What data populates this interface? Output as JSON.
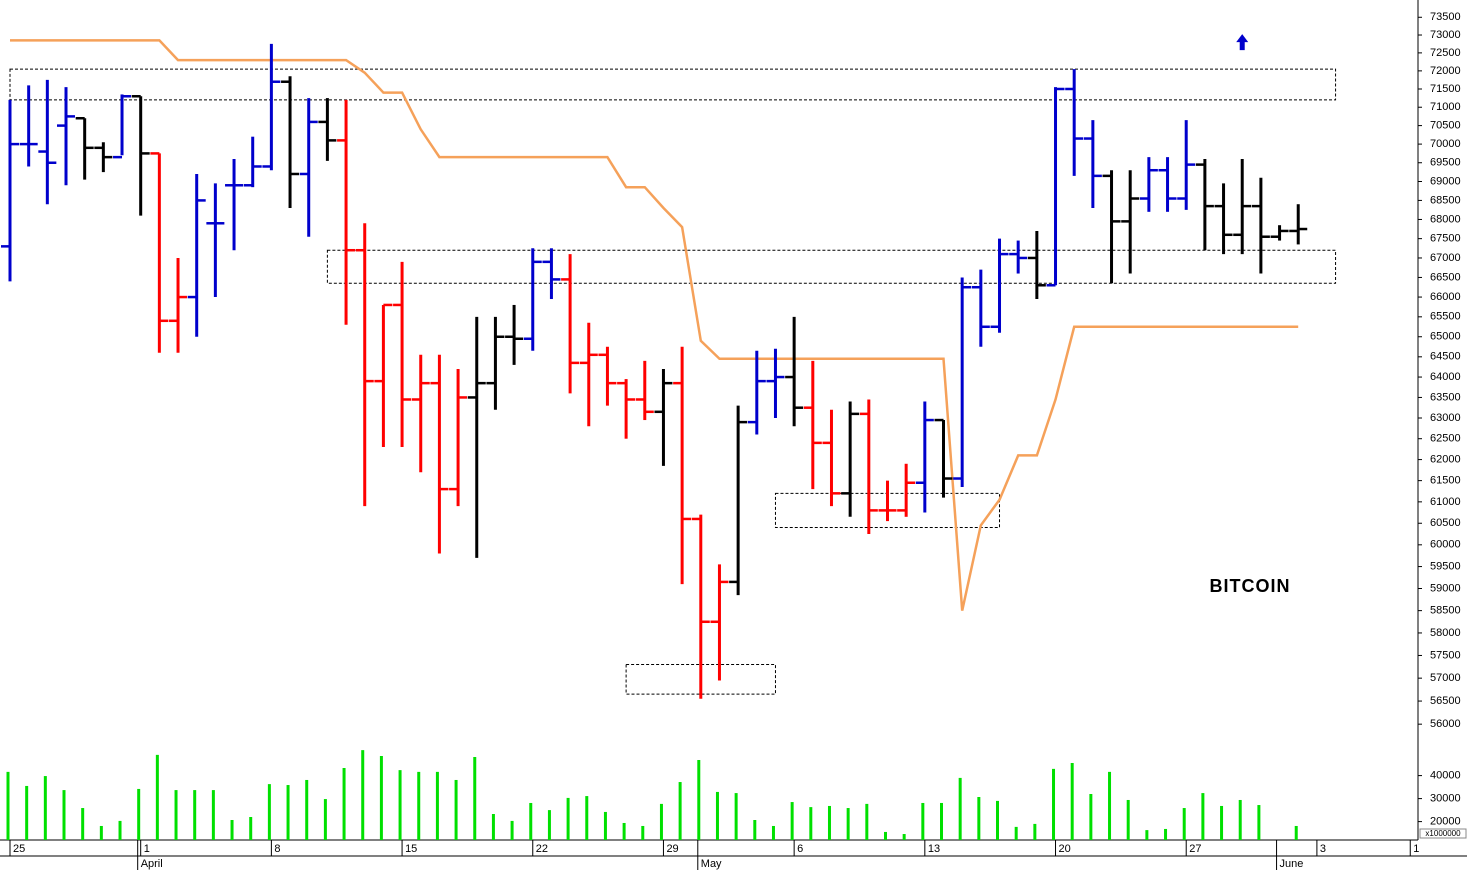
{
  "chart_data": {
    "type": "ohlc",
    "annotation": "BITCOIN",
    "log_scale": true,
    "ylim": [
      55660,
      73990
    ],
    "yticks": [
      73500,
      73000,
      72500,
      72000,
      71500,
      71000,
      70500,
      70000,
      69500,
      69000,
      68500,
      68000,
      67500,
      67000,
      66500,
      66000,
      65500,
      65000,
      64500,
      64000,
      63500,
      63000,
      62500,
      62000,
      61500,
      61000,
      60500,
      60000,
      59500,
      59000,
      58500,
      58000,
      57500,
      57000,
      56500,
      56000
    ],
    "categories": [
      "25",
      null,
      null,
      null,
      null,
      null,
      null,
      "1",
      null,
      null,
      null,
      null,
      null,
      null,
      "8",
      null,
      null,
      null,
      null,
      null,
      null,
      "15",
      null,
      null,
      null,
      null,
      null,
      null,
      "22",
      null,
      null,
      null,
      null,
      null,
      null,
      "29",
      null,
      null,
      null,
      null,
      null,
      null,
      "6",
      null,
      null,
      null,
      null,
      null,
      null,
      "13",
      null,
      null,
      null,
      null,
      null,
      null,
      "20",
      null,
      null,
      null,
      null,
      null,
      null,
      "27",
      null,
      null,
      null,
      null,
      null,
      null,
      "3",
      null,
      null,
      null,
      null,
      "1"
    ],
    "months": [
      null,
      null,
      null,
      null,
      null,
      null,
      null,
      "April",
      null,
      null,
      null,
      null,
      null,
      null,
      null,
      null,
      null,
      null,
      null,
      null,
      null,
      null,
      null,
      null,
      null,
      null,
      null,
      null,
      null,
      null,
      null,
      null,
      null,
      null,
      null,
      null,
      null,
      "May",
      null,
      null,
      null,
      null,
      null,
      null,
      null,
      null,
      null,
      null,
      null,
      null,
      null,
      null,
      null,
      null,
      null,
      null,
      null,
      null,
      null,
      null,
      null,
      null,
      null,
      null,
      null,
      null,
      null,
      null,
      "June",
      null,
      null,
      null,
      null,
      null,
      null,
      null
    ],
    "open": [
      67300,
      70000,
      69800,
      70500,
      70700,
      69900,
      69650,
      71300,
      69750,
      65400,
      66000,
      67900,
      68900,
      68900,
      69400,
      71700,
      69200,
      70600,
      70100,
      67200,
      63900,
      65800,
      63450,
      63850,
      61300,
      63500,
      63850,
      65000,
      64950,
      66900,
      66450,
      64350,
      64550,
      63850,
      63450,
      63150,
      63850,
      60600,
      58250,
      59150,
      62900,
      63900,
      64000,
      63250,
      62400,
      61200,
      63100,
      60800,
      60800,
      61450,
      62950,
      61550,
      66250,
      65250,
      67100,
      67000,
      66300,
      71500,
      70150,
      69150,
      67950,
      68550,
      69300,
      68550,
      69450,
      68350,
      67600,
      68350,
      67550,
      67700,
      null,
      null,
      null,
      null,
      null,
      null
    ],
    "high": [
      71200,
      71600,
      71750,
      71550,
      70700,
      70050,
      71350,
      71300,
      69750,
      67000,
      69200,
      68950,
      69600,
      70200,
      72750,
      71850,
      71250,
      71250,
      71200,
      67900,
      65800,
      66900,
      64550,
      64550,
      64200,
      65500,
      65500,
      65800,
      67250,
      67250,
      67100,
      65350,
      64750,
      63950,
      64400,
      64200,
      64750,
      60700,
      59550,
      63300,
      64650,
      64700,
      65500,
      64400,
      63200,
      63400,
      63450,
      61500,
      61900,
      63400,
      62950,
      66500,
      66700,
      67500,
      67450,
      67700,
      71550,
      72050,
      70650,
      69300,
      69300,
      69650,
      69650,
      70650,
      69600,
      68950,
      69600,
      69100,
      67850,
      68400,
      null,
      null,
      null,
      null,
      null,
      null
    ],
    "low": [
      66400,
      69400,
      68400,
      68900,
      69050,
      69250,
      69700,
      68100,
      64600,
      64600,
      65000,
      66000,
      67200,
      68850,
      69300,
      68300,
      67550,
      69550,
      65300,
      60900,
      62300,
      62300,
      61700,
      59800,
      60900,
      59700,
      63200,
      64300,
      64650,
      65950,
      63600,
      62800,
      63300,
      62500,
      62950,
      61850,
      59100,
      56550,
      56950,
      58850,
      62600,
      63000,
      62800,
      61300,
      60900,
      60650,
      60250,
      60550,
      60650,
      60750,
      61100,
      61350,
      64750,
      65100,
      66600,
      65950,
      66300,
      69150,
      68300,
      66350,
      66600,
      68200,
      68200,
      68250,
      67200,
      67100,
      67100,
      66600,
      67450,
      67350,
      null,
      null,
      null,
      null,
      null,
      null
    ],
    "close": [
      70000,
      70000,
      69500,
      70750,
      69900,
      69650,
      71300,
      69750,
      65400,
      66000,
      68500,
      67900,
      68900,
      69400,
      71700,
      69200,
      70600,
      70100,
      67200,
      63900,
      65800,
      63450,
      63850,
      61300,
      63500,
      63850,
      65000,
      64950,
      66900,
      66450,
      64350,
      64550,
      63850,
      63450,
      63150,
      63850,
      60600,
      58250,
      59150,
      62900,
      63900,
      64000,
      63250,
      62400,
      61200,
      63100,
      60800,
      60800,
      61450,
      62950,
      61550,
      66250,
      65250,
      67100,
      67000,
      66300,
      71500,
      70150,
      69150,
      67950,
      68550,
      69300,
      68550,
      69450,
      68350,
      67600,
      68350,
      67550,
      67700,
      67750,
      null,
      null,
      null,
      null,
      null,
      null
    ],
    "bar_colors": [
      "#0000cc",
      "#0000cc",
      "#0000cc",
      "#0000cc",
      "#000000",
      "#000000",
      "#0000cc",
      "#000000",
      "#ff0000",
      "#ff0000",
      "#0000cc",
      "#0000cc",
      "#0000cc",
      "#0000cc",
      "#0000cc",
      "#000000",
      "#0000cc",
      "#000000",
      "#ff0000",
      "#ff0000",
      "#ff0000",
      "#ff0000",
      "#ff0000",
      "#ff0000",
      "#ff0000",
      "#000000",
      "#000000",
      "#000000",
      "#0000cc",
      "#0000cc",
      "#ff0000",
      "#ff0000",
      "#ff0000",
      "#ff0000",
      "#ff0000",
      "#000000",
      "#ff0000",
      "#ff0000",
      "#ff0000",
      "#000000",
      "#0000cc",
      "#0000cc",
      "#000000",
      "#ff0000",
      "#ff0000",
      "#000000",
      "#ff0000",
      "#ff0000",
      "#ff0000",
      "#0000cc",
      "#000000",
      "#0000cc",
      "#0000cc",
      "#0000cc",
      "#0000cc",
      "#000000",
      "#0000cc",
      "#0000cc",
      "#0000cc",
      "#000000",
      "#000000",
      "#0000cc",
      "#0000cc",
      "#0000cc",
      "#000000",
      "#000000",
      "#000000",
      "#000000",
      "#000000",
      "#000000",
      null,
      null,
      null,
      null,
      null,
      null
    ],
    "stop_line": {
      "color": "#f5a15a",
      "values": [
        72850,
        72850,
        72850,
        72850,
        72850,
        72850,
        72850,
        72850,
        72850,
        72300,
        72300,
        72300,
        72300,
        72300,
        72300,
        72300,
        72300,
        72300,
        72300,
        71950,
        71400,
        71400,
        70400,
        69650,
        69650,
        69650,
        69650,
        69650,
        69650,
        69650,
        69650,
        69650,
        69650,
        68850,
        68850,
        68300,
        67800,
        64900,
        64450,
        64450,
        64450,
        64450,
        64450,
        64450,
        64450,
        64450,
        64450,
        64450,
        64450,
        64450,
        64450,
        58500,
        60450,
        61050,
        62100,
        62100,
        63450,
        65250,
        65250,
        65250,
        65250,
        65250,
        65250,
        65250,
        65250,
        65250,
        65250,
        65250,
        65250,
        65250,
        null,
        null,
        null,
        null,
        null,
        null
      ]
    },
    "zones": [
      {
        "from": 0,
        "to": 71,
        "high": 72050,
        "low": 71200
      },
      {
        "from": 17,
        "to": 71,
        "high": 67200,
        "low": 66350
      },
      {
        "from": 33,
        "to": 41,
        "high": 57300,
        "low": 56650
      },
      {
        "from": 41,
        "to": 53,
        "high": 61200,
        "low": 60400
      }
    ],
    "signal": {
      "index": 66,
      "value": 72800,
      "color": "#0000cc"
    },
    "volume": {
      "color": "#00e000",
      "unit_label": "x1000000",
      "ylim": [
        12000,
        62000
      ],
      "yticks": [
        40000,
        30000,
        20000
      ],
      "values": [
        41600,
        35500,
        39800,
        33700,
        25900,
        18100,
        20300,
        34200,
        49000,
        33700,
        33700,
        33700,
        20700,
        22000,
        36300,
        35900,
        38100,
        29800,
        43300,
        51100,
        48500,
        42400,
        41600,
        41600,
        38100,
        48100,
        23300,
        20300,
        28100,
        25000,
        30300,
        31100,
        24200,
        19400,
        18100,
        27700,
        37200,
        46800,
        32900,
        32400,
        20700,
        18100,
        28500,
        26300,
        26800,
        25900,
        27700,
        15500,
        14600,
        28100,
        28100,
        39000,
        30700,
        29000,
        17700,
        19000,
        42900,
        45500,
        32000,
        41600,
        29400,
        16300,
        16800,
        25900,
        32400,
        26800,
        29400,
        27200,
        null,
        18100,
        null,
        null,
        null,
        null,
        null,
        null
      ]
    }
  }
}
